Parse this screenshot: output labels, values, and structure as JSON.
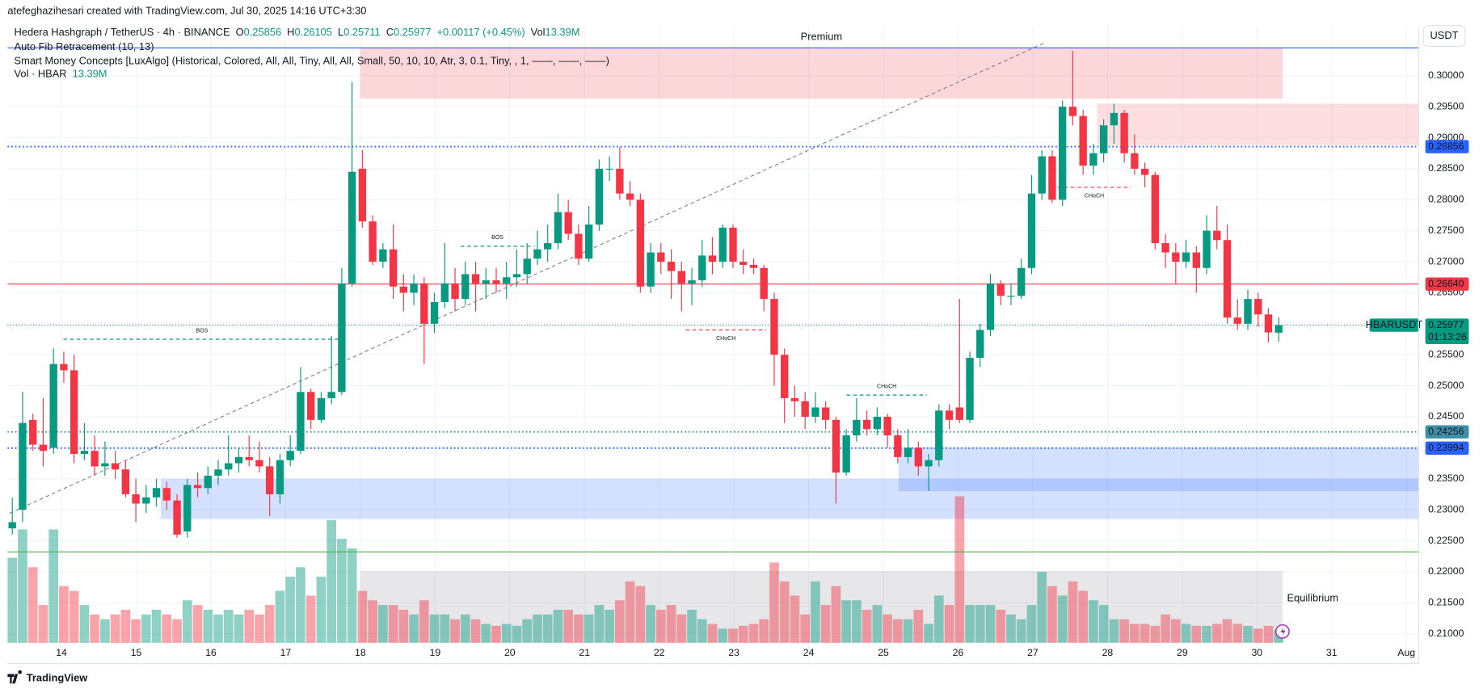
{
  "chart_data": {
    "type": "candlestick",
    "header": "atefeghazihesari created with TradingView.com, Jul 30, 2025 14:16 UTC+3:30",
    "symbol": "Hedera Hashgraph / TetherUS · 4h · BINANCE",
    "legend": [
      {
        "key": "O",
        "text": "0.25856"
      },
      {
        "key": "H",
        "text": "0.26105"
      },
      {
        "key": "L",
        "text": "0.25711"
      },
      {
        "key": "C",
        "text": "0.25977"
      }
    ],
    "change": "+0.00117 (+0.45%)",
    "vol_key": "Vol",
    "vol_text": "13.39M",
    "indicators": [
      "Auto Fib Retracement (10, 13)",
      "Smart Money Concepts [LuxAlgo] (Historical, Colored, All, All, Tiny, All, All, Small, 50, 10, 10, Atr, 3, 0.1, Tiny, , 1, ——, ——, ——)"
    ],
    "vol_indicator": "Vol · HBAR",
    "vol_indicator_value": "13.39M",
    "currency": "USDT",
    "footer": "TradingView",
    "up_color": "#089981",
    "down_color": "#f23645",
    "ylim": [
      0.20854,
      0.30534
    ],
    "yticks": [
      {
        "value": 0.21,
        "label": "0.21000"
      },
      {
        "value": 0.215,
        "label": "0.21500"
      },
      {
        "value": 0.22,
        "label": "0.22000"
      },
      {
        "value": 0.225,
        "label": "0.22500"
      },
      {
        "value": 0.23,
        "label": "0.23000"
      },
      {
        "value": 0.235,
        "label": "0.23500"
      },
      {
        "value": 0.24,
        "label": "0.24000"
      },
      {
        "value": 0.245,
        "label": "0.24500"
      },
      {
        "value": 0.25,
        "label": "0.25000"
      },
      {
        "value": 0.255,
        "label": "0.25500"
      },
      {
        "value": 0.26,
        "label": "0.26000"
      },
      {
        "value": 0.265,
        "label": "0.26500"
      },
      {
        "value": 0.27,
        "label": "0.27000"
      },
      {
        "value": 0.275,
        "label": "0.27500"
      },
      {
        "value": 0.28,
        "label": "0.28000"
      },
      {
        "value": 0.285,
        "label": "0.28500"
      },
      {
        "value": 0.29,
        "label": "0.29000"
      },
      {
        "value": 0.295,
        "label": "0.29500"
      },
      {
        "value": 0.3,
        "label": "0.30000"
      }
    ],
    "xticks": [
      "14",
      "15",
      "16",
      "17",
      "18",
      "19",
      "20",
      "21",
      "22",
      "23",
      "24",
      "25",
      "26",
      "27",
      "28",
      "29",
      "30",
      "31",
      "Aug"
    ],
    "ohlc": [
      [
        0.227,
        0.232,
        0.226,
        0.228
      ],
      [
        0.23,
        0.249,
        0.228,
        0.244
      ],
      [
        0.2445,
        0.2455,
        0.2395,
        0.2405
      ],
      [
        0.2405,
        0.248,
        0.237,
        0.2395
      ],
      [
        0.24,
        0.256,
        0.239,
        0.2535
      ],
      [
        0.2535,
        0.2555,
        0.2505,
        0.2525
      ],
      [
        0.2525,
        0.255,
        0.2375,
        0.239
      ],
      [
        0.239,
        0.244,
        0.238,
        0.2395
      ],
      [
        0.2395,
        0.242,
        0.2355,
        0.237
      ],
      [
        0.237,
        0.241,
        0.2355,
        0.2375
      ],
      [
        0.2375,
        0.2395,
        0.235,
        0.2365
      ],
      [
        0.2365,
        0.238,
        0.232,
        0.2325
      ],
      [
        0.2325,
        0.235,
        0.228,
        0.231
      ],
      [
        0.231,
        0.234,
        0.2295,
        0.232
      ],
      [
        0.232,
        0.235,
        0.2305,
        0.2335
      ],
      [
        0.2335,
        0.2345,
        0.23,
        0.2315
      ],
      [
        0.2315,
        0.2325,
        0.2255,
        0.226
      ],
      [
        0.2265,
        0.235,
        0.2255,
        0.234
      ],
      [
        0.234,
        0.236,
        0.232,
        0.2335
      ],
      [
        0.2335,
        0.237,
        0.2325,
        0.2355
      ],
      [
        0.2355,
        0.238,
        0.234,
        0.2365
      ],
      [
        0.2365,
        0.242,
        0.2355,
        0.2375
      ],
      [
        0.2375,
        0.24,
        0.236,
        0.2385
      ],
      [
        0.2385,
        0.242,
        0.237,
        0.238
      ],
      [
        0.238,
        0.241,
        0.236,
        0.237
      ],
      [
        0.237,
        0.2385,
        0.229,
        0.2325
      ],
      [
        0.2325,
        0.239,
        0.231,
        0.238
      ],
      [
        0.238,
        0.242,
        0.237,
        0.2395
      ],
      [
        0.2395,
        0.253,
        0.239,
        0.249
      ],
      [
        0.249,
        0.2495,
        0.243,
        0.2445
      ],
      [
        0.2445,
        0.249,
        0.244,
        0.248
      ],
      [
        0.248,
        0.258,
        0.247,
        0.249
      ],
      [
        0.249,
        0.269,
        0.2485,
        0.2665
      ],
      [
        0.2665,
        0.299,
        0.266,
        0.2845
      ],
      [
        0.285,
        0.288,
        0.2755,
        0.2765
      ],
      [
        0.2765,
        0.2775,
        0.2695,
        0.27
      ],
      [
        0.27,
        0.273,
        0.269,
        0.272
      ],
      [
        0.272,
        0.276,
        0.264,
        0.266
      ],
      [
        0.266,
        0.268,
        0.262,
        0.265
      ],
      [
        0.265,
        0.268,
        0.263,
        0.2665
      ],
      [
        0.2665,
        0.2675,
        0.2535,
        0.26
      ],
      [
        0.26,
        0.265,
        0.2585,
        0.2635
      ],
      [
        0.2635,
        0.273,
        0.2625,
        0.2665
      ],
      [
        0.2665,
        0.269,
        0.262,
        0.264
      ],
      [
        0.264,
        0.27,
        0.263,
        0.268
      ],
      [
        0.268,
        0.27,
        0.262,
        0.2665
      ],
      [
        0.2665,
        0.269,
        0.264,
        0.267
      ],
      [
        0.267,
        0.269,
        0.265,
        0.2665
      ],
      [
        0.2665,
        0.27,
        0.264,
        0.2675
      ],
      [
        0.2675,
        0.272,
        0.266,
        0.268
      ],
      [
        0.268,
        0.273,
        0.2665,
        0.2705
      ],
      [
        0.2705,
        0.275,
        0.2695,
        0.272
      ],
      [
        0.272,
        0.276,
        0.27,
        0.273
      ],
      [
        0.273,
        0.281,
        0.272,
        0.278
      ],
      [
        0.278,
        0.28,
        0.2735,
        0.2745
      ],
      [
        0.2745,
        0.276,
        0.2695,
        0.2705
      ],
      [
        0.2705,
        0.279,
        0.27,
        0.276
      ],
      [
        0.276,
        0.2865,
        0.275,
        0.285
      ],
      [
        0.285,
        0.287,
        0.283,
        0.285
      ],
      [
        0.285,
        0.2885,
        0.28,
        0.281
      ],
      [
        0.281,
        0.283,
        0.279,
        0.28
      ],
      [
        0.28,
        0.281,
        0.265,
        0.266
      ],
      [
        0.266,
        0.273,
        0.265,
        0.2715
      ],
      [
        0.2715,
        0.273,
        0.268,
        0.27
      ],
      [
        0.27,
        0.272,
        0.264,
        0.2685
      ],
      [
        0.2685,
        0.27,
        0.262,
        0.2665
      ],
      [
        0.2665,
        0.269,
        0.263,
        0.267
      ],
      [
        0.267,
        0.2735,
        0.266,
        0.271
      ],
      [
        0.271,
        0.274,
        0.268,
        0.27
      ],
      [
        0.27,
        0.276,
        0.269,
        0.2755
      ],
      [
        0.2755,
        0.276,
        0.269,
        0.27
      ],
      [
        0.27,
        0.272,
        0.268,
        0.2695
      ],
      [
        0.2695,
        0.2705,
        0.268,
        0.269
      ],
      [
        0.269,
        0.2695,
        0.262,
        0.264
      ],
      [
        0.264,
        0.265,
        0.25,
        0.255
      ],
      [
        0.255,
        0.256,
        0.244,
        0.248
      ],
      [
        0.248,
        0.25,
        0.245,
        0.2475
      ],
      [
        0.2475,
        0.249,
        0.243,
        0.245
      ],
      [
        0.245,
        0.249,
        0.244,
        0.2465
      ],
      [
        0.2465,
        0.2475,
        0.243,
        0.2445
      ],
      [
        0.2445,
        0.245,
        0.231,
        0.236
      ],
      [
        0.236,
        0.243,
        0.2355,
        0.242
      ],
      [
        0.242,
        0.248,
        0.241,
        0.2445
      ],
      [
        0.2445,
        0.246,
        0.242,
        0.243
      ],
      [
        0.243,
        0.2465,
        0.242,
        0.245
      ],
      [
        0.245,
        0.2455,
        0.24,
        0.242
      ],
      [
        0.242,
        0.243,
        0.2375,
        0.2385
      ],
      [
        0.2385,
        0.243,
        0.2375,
        0.24
      ],
      [
        0.24,
        0.241,
        0.2355,
        0.237
      ],
      [
        0.237,
        0.239,
        0.233,
        0.238
      ],
      [
        0.238,
        0.247,
        0.237,
        0.246
      ],
      [
        0.246,
        0.247,
        0.243,
        0.2445
      ],
      [
        0.2465,
        0.264,
        0.244,
        0.2445
      ],
      [
        0.2445,
        0.2555,
        0.244,
        0.2545
      ],
      [
        0.2545,
        0.26,
        0.253,
        0.259
      ],
      [
        0.259,
        0.268,
        0.258,
        0.2665
      ],
      [
        0.2665,
        0.267,
        0.263,
        0.2645
      ],
      [
        0.2645,
        0.2665,
        0.263,
        0.2645
      ],
      [
        0.2645,
        0.2705,
        0.264,
        0.269
      ],
      [
        0.269,
        0.284,
        0.268,
        0.281
      ],
      [
        0.281,
        0.288,
        0.28,
        0.287
      ],
      [
        0.287,
        0.288,
        0.2795,
        0.28
      ],
      [
        0.28,
        0.296,
        0.279,
        0.295
      ],
      [
        0.295,
        0.304,
        0.292,
        0.2935
      ],
      [
        0.2935,
        0.2945,
        0.284,
        0.2855
      ],
      [
        0.2855,
        0.289,
        0.284,
        0.2875
      ],
      [
        0.2875,
        0.293,
        0.286,
        0.292
      ],
      [
        0.292,
        0.2955,
        0.289,
        0.294
      ],
      [
        0.294,
        0.2945,
        0.286,
        0.2875
      ],
      [
        0.2875,
        0.2905,
        0.284,
        0.285
      ],
      [
        0.285,
        0.286,
        0.282,
        0.284
      ],
      [
        0.284,
        0.2845,
        0.272,
        0.273
      ],
      [
        0.273,
        0.2745,
        0.269,
        0.2715
      ],
      [
        0.2715,
        0.273,
        0.2665,
        0.27
      ],
      [
        0.27,
        0.2735,
        0.269,
        0.2715
      ],
      [
        0.2715,
        0.2725,
        0.265,
        0.269
      ],
      [
        0.269,
        0.2775,
        0.268,
        0.275
      ],
      [
        0.275,
        0.279,
        0.272,
        0.2735
      ],
      [
        0.2735,
        0.276,
        0.26,
        0.261
      ],
      [
        0.261,
        0.264,
        0.259,
        0.26
      ],
      [
        0.26,
        0.2655,
        0.259,
        0.264
      ],
      [
        0.264,
        0.265,
        0.2595,
        0.2615
      ],
      [
        0.2615,
        0.2625,
        0.257,
        0.2586
      ],
      [
        0.25856,
        0.26105,
        0.25711,
        0.25977
      ]
    ],
    "volume": [
      90,
      120,
      80,
      40,
      120,
      60,
      55,
      40,
      30,
      25,
      30,
      35,
      25,
      30,
      35,
      30,
      25,
      45,
      40,
      35,
      30,
      35,
      30,
      35,
      30,
      40,
      55,
      70,
      80,
      50,
      70,
      130,
      110,
      100,
      55,
      45,
      40,
      40,
      35,
      30,
      45,
      30,
      30,
      25,
      30,
      25,
      20,
      18,
      20,
      18,
      25,
      30,
      30,
      35,
      35,
      30,
      30,
      40,
      35,
      45,
      65,
      60,
      40,
      35,
      40,
      30,
      35,
      25,
      20,
      15,
      15,
      18,
      20,
      25,
      85,
      65,
      50,
      30,
      65,
      40,
      60,
      45,
      45,
      35,
      40,
      30,
      25,
      25,
      35,
      20,
      50,
      40,
      155,
      40,
      40,
      40,
      35,
      30,
      25,
      40,
      75,
      60,
      50,
      65,
      55,
      45,
      40,
      25,
      25,
      20,
      20,
      18,
      30,
      25,
      20,
      18,
      18,
      20,
      25,
      20,
      18,
      15,
      18,
      13.39
    ],
    "zones": [
      {
        "label": "Premium",
        "low": 0.2963,
        "high": 0.3045,
        "color": "#f23645"
      },
      {
        "low": 0.2888,
        "high": 0.2955,
        "color": "#f23645"
      },
      {
        "low": 0.2285,
        "high": 0.235,
        "color": "#2962ff"
      },
      {
        "low": 0.233,
        "high": 0.24,
        "color": "#2962ff"
      },
      {
        "label": "Equilibrium",
        "low": 0.2086,
        "high": 0.2201,
        "color": "#787b86"
      }
    ],
    "structures": [
      {
        "label": "BOS",
        "level": 0.2575,
        "color": "#089981"
      },
      {
        "label": "BOS",
        "level": 0.2725,
        "color": "#089981"
      },
      {
        "label": "CHoCH",
        "level": 0.259,
        "color": "#f23645"
      },
      {
        "label": "CHoCH",
        "level": 0.2485,
        "color": "#089981"
      },
      {
        "label": "CHoCH",
        "level": 0.282,
        "color": "#f23645"
      }
    ],
    "levels": [
      {
        "value": 0.28856,
        "label": "0.28856",
        "color": "#2962ff",
        "style": "dotted"
      },
      {
        "value": 0.2664,
        "label": "0.26640",
        "color": "#f23645",
        "style": "solid"
      },
      {
        "value": 0.24256,
        "label": "0.24256",
        "color": "#3d8fa8",
        "style": "dotted"
      },
      {
        "value": 0.23994,
        "label": "0.23994",
        "color": "#2962ff",
        "style": "dotted"
      }
    ],
    "lines": [
      {
        "value": 0.2232,
        "color": "#4caf50"
      },
      {
        "value": 0.3045,
        "color": "#2962ff"
      }
    ],
    "last": {
      "name": "HBARUSDT",
      "value": 0.25977,
      "countdown": "01:13:26",
      "color": "#089981"
    }
  }
}
